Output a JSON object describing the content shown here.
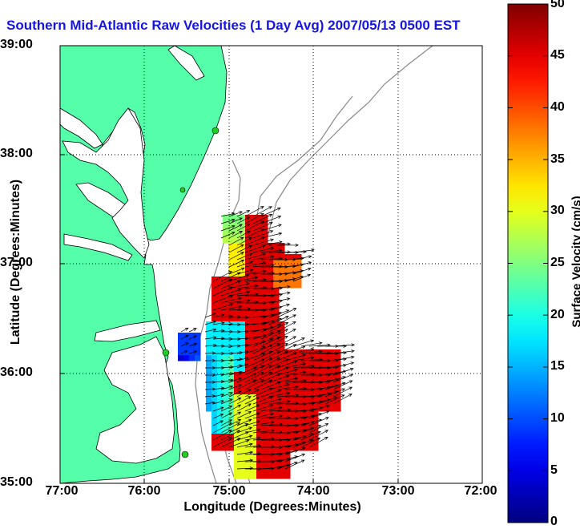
{
  "title": "Southern Mid-Atlantic Raw Velocities (1 Day Avg) 2007/05/13 0500 EST",
  "map": {
    "xlabel": "Longitude (Degrees:Minutes)",
    "ylabel": "Latitude (Degrees:Minutes)",
    "x_ticks": [
      "77:00",
      "76:00",
      "75:00",
      "74:00",
      "73:00",
      "72:00"
    ],
    "y_ticks": [
      "39:00",
      "38:00",
      "37:00",
      "36:00",
      "35:00"
    ],
    "lon_range": [
      -77,
      -72
    ],
    "lat_range": [
      35,
      39
    ],
    "grid": "dotted",
    "land_color": "#55ffaa",
    "coast_color": "#000000",
    "bathymetry_color": "#888888",
    "station_color": "#22cc22"
  },
  "colorbar": {
    "label": "Surface Velocity (cm/s)",
    "ticks": [
      "50",
      "45",
      "40",
      "35",
      "30",
      "25",
      "20",
      "15",
      "10",
      "5",
      "0"
    ],
    "range": [
      0,
      50
    ],
    "colormap": "jet"
  }
}
